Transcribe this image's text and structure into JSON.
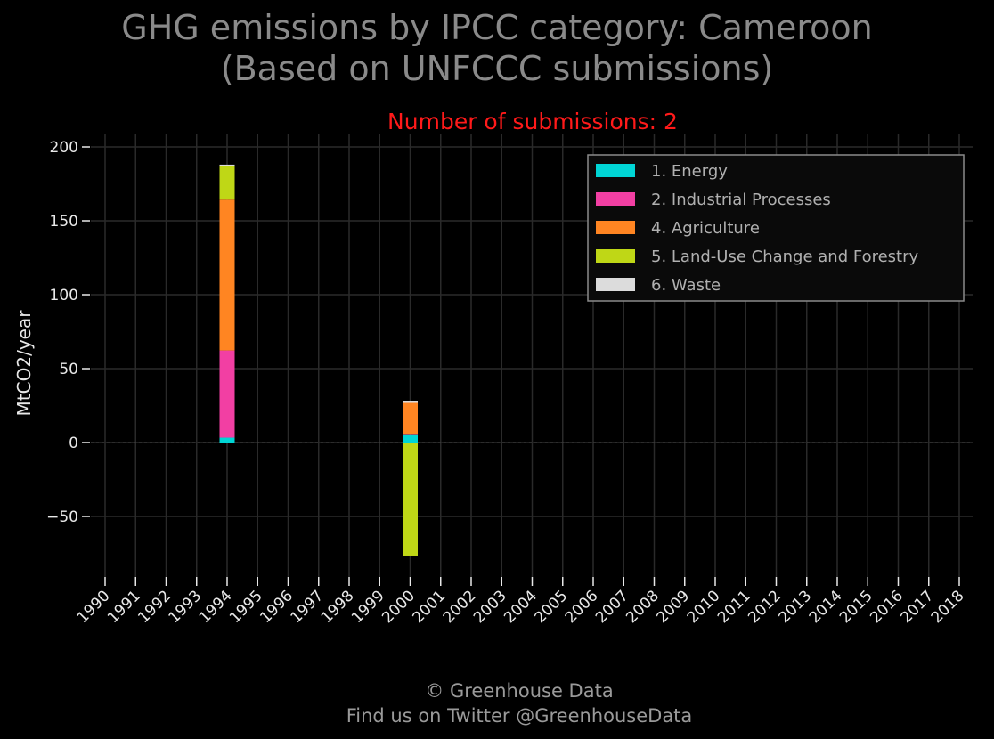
{
  "title": {
    "line1": "GHG emissions by IPCC category: Cameroon",
    "line2": "(Based on UNFCCC submissions)"
  },
  "subtitle": "Number of submissions: 2",
  "footer": {
    "line1": "© Greenhouse Data",
    "line2": "Find us on Twitter @GreenhouseData"
  },
  "colors": {
    "background": "#000000",
    "grid": "#2a2a2a",
    "subtitle": "#ff1a1a"
  },
  "chart_data": {
    "type": "bar",
    "stacked": true,
    "ylabel": "MtCO2/year",
    "xlabel": "",
    "ylim": [
      -90,
      200
    ],
    "yticks": [
      -50,
      0,
      50,
      100,
      150,
      200
    ],
    "ytick_labels": [
      "−50",
      "0",
      "50",
      "100",
      "150",
      "200"
    ],
    "grid": true,
    "legend_position": "top-right",
    "categories": [
      "1990",
      "1991",
      "1992",
      "1993",
      "1994",
      "1995",
      "1996",
      "1997",
      "1998",
      "1999",
      "2000",
      "2001",
      "2002",
      "2003",
      "2004",
      "2005",
      "2006",
      "2007",
      "2008",
      "2009",
      "2010",
      "2011",
      "2012",
      "2013",
      "2014",
      "2015",
      "2016",
      "2017",
      "2018"
    ],
    "series": [
      {
        "name": "1. Energy",
        "color": "#00d5d5",
        "values": {
          "1994": 3.3,
          "2000": 5.0
        }
      },
      {
        "name": "2. Industrial Processes",
        "color": "#f23fa3",
        "values": {
          "1994": 59.0,
          "2000": 0.3
        }
      },
      {
        "name": "4. Agriculture",
        "color": "#ff8522",
        "values": {
          "1994": 102.0,
          "2000": 21.5
        }
      },
      {
        "name": "5. Land-Use Change and Forestry",
        "color": "#bfd716",
        "values": {
          "1994": 22.5,
          "2000": -76.5
        }
      },
      {
        "name": "6. Waste",
        "color": "#dcdcdc",
        "values": {
          "1994": 1.2,
          "2000": 1.5
        }
      }
    ]
  }
}
